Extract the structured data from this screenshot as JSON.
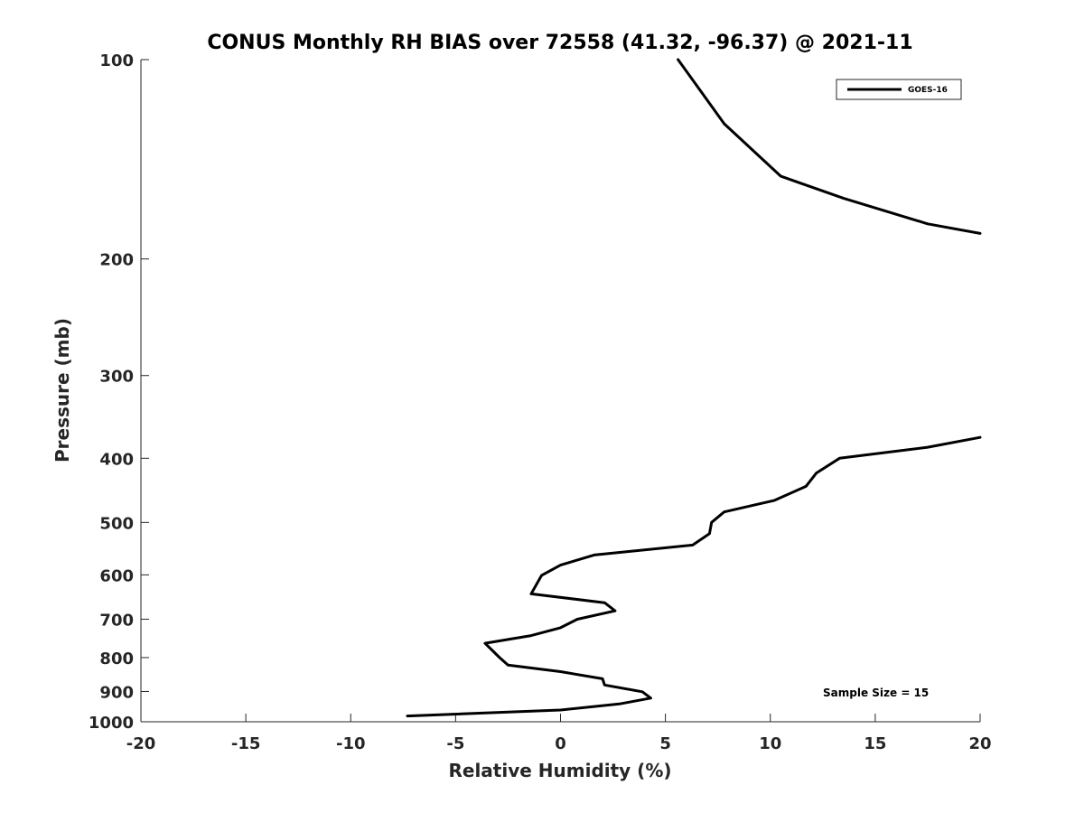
{
  "chart_data": {
    "type": "line",
    "title": "CONUS Monthly RH BIAS over 72558 (41.32, -96.37) @ 2021-11",
    "xlabel": "Relative Humidity (%)",
    "ylabel": "Pressure (mb)",
    "xlim": [
      -20,
      20
    ],
    "ylim": [
      100,
      1000
    ],
    "y_scale": "log",
    "y_inverted": true,
    "x_ticks": [
      -20,
      -15,
      -10,
      -5,
      0,
      5,
      10,
      15,
      20
    ],
    "y_ticks": [
      100,
      200,
      300,
      400,
      500,
      600,
      700,
      800,
      900,
      1000
    ],
    "grid": false,
    "legend_position": "top-right",
    "series": [
      {
        "name": "GOES-16",
        "color": "#000000",
        "segments": [
          [
            {
              "x": 5.6,
              "y": 100
            },
            {
              "x": 7.8,
              "y": 125
            },
            {
              "x": 10.5,
              "y": 150
            },
            {
              "x": 13.5,
              "y": 162
            },
            {
              "x": 17.5,
              "y": 177
            },
            {
              "x": 20.0,
              "y": 183
            }
          ],
          [
            {
              "x": 20.0,
              "y": 372
            },
            {
              "x": 17.5,
              "y": 385
            },
            {
              "x": 13.3,
              "y": 400
            },
            {
              "x": 12.2,
              "y": 421
            },
            {
              "x": 11.7,
              "y": 441
            },
            {
              "x": 10.2,
              "y": 463
            },
            {
              "x": 7.8,
              "y": 482
            },
            {
              "x": 7.2,
              "y": 500
            },
            {
              "x": 7.1,
              "y": 520
            },
            {
              "x": 6.3,
              "y": 541
            },
            {
              "x": 1.6,
              "y": 560
            },
            {
              "x": 0.0,
              "y": 580
            },
            {
              "x": -0.9,
              "y": 601
            },
            {
              "x": -1.4,
              "y": 641
            },
            {
              "x": 2.1,
              "y": 661
            },
            {
              "x": 2.6,
              "y": 680
            },
            {
              "x": 0.8,
              "y": 700
            },
            {
              "x": 0.0,
              "y": 721
            },
            {
              "x": -1.4,
              "y": 741
            },
            {
              "x": -3.6,
              "y": 761
            },
            {
              "x": -2.9,
              "y": 800
            },
            {
              "x": -2.5,
              "y": 821
            },
            {
              "x": 0.0,
              "y": 840
            },
            {
              "x": 2.0,
              "y": 861
            },
            {
              "x": 2.1,
              "y": 880
            },
            {
              "x": 3.9,
              "y": 901
            },
            {
              "x": 4.3,
              "y": 921
            },
            {
              "x": 2.8,
              "y": 940
            },
            {
              "x": 0.0,
              "y": 960
            },
            {
              "x": -7.3,
              "y": 980
            }
          ]
        ]
      }
    ],
    "annotations": [
      "Sample Size = 15"
    ]
  }
}
